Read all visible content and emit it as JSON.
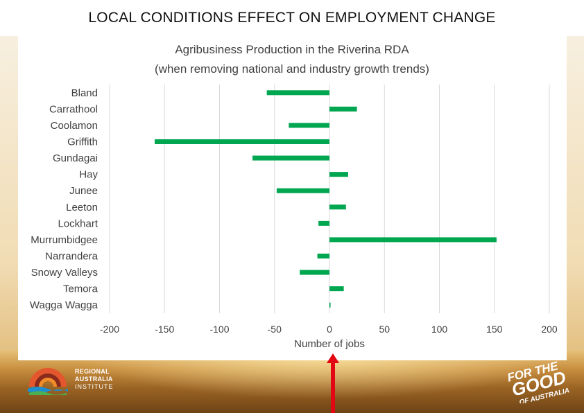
{
  "slide": {
    "title": "LOCAL CONDITIONS EFFECT ON EMPLOYMENT CHANGE"
  },
  "branding": {
    "rai_line1": "REGIONAL",
    "rai_line2": "AUSTRALIA",
    "rai_line3": "INSTITUTE",
    "badge_line1": "FOR THE",
    "badge_line2": "GOOD",
    "badge_line3": "OF AUSTRALIA"
  },
  "colors": {
    "bar": "#00a650",
    "grid": "#d9d9d9",
    "arrow": "#e30613"
  },
  "chart_data": {
    "type": "bar",
    "orientation": "horizontal",
    "title_line1": "Agribusiness Production in the Riverina RDA",
    "title_line2": "(when removing national and industry growth trends)",
    "xlabel": "Number of jobs",
    "ylabel": "",
    "xlim": [
      -200,
      200
    ],
    "xticks": [
      -200,
      -150,
      -100,
      -50,
      0,
      50,
      100,
      150,
      200
    ],
    "grid": true,
    "categories": [
      "Bland",
      "Carrathool",
      "Coolamon",
      "Griffith",
      "Gundagai",
      "Hay",
      "Junee",
      "Leeton",
      "Lockhart",
      "Murrumbidgee",
      "Narrandera",
      "Snowy Valleys",
      "Temora",
      "Wagga Wagga"
    ],
    "values": [
      -57,
      25,
      -37,
      -159,
      -70,
      17,
      -48,
      15,
      -10,
      152,
      -11,
      -27,
      13,
      1
    ]
  }
}
